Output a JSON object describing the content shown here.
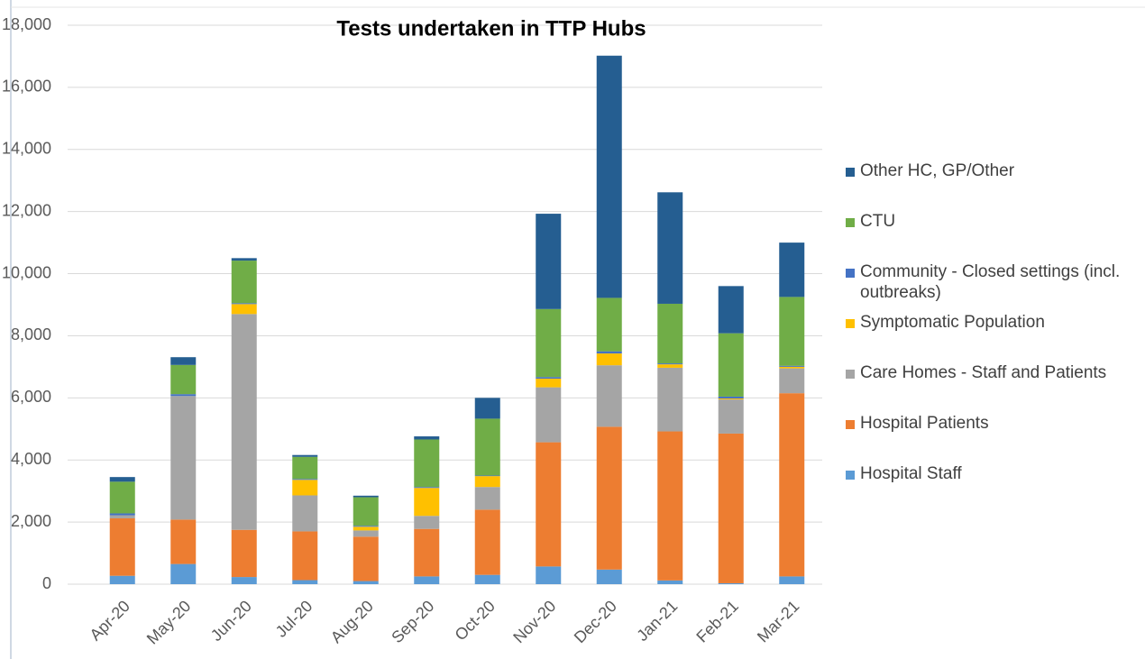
{
  "chart_data": {
    "type": "stacked_bar",
    "title": "Tests undertaken in TTP Hubs",
    "categories": [
      "Apr-20",
      "May-20",
      "Jun-20",
      "Jul-20",
      "Aug-20",
      "Sep-20",
      "Oct-20",
      "Nov-20",
      "Dec-20",
      "Jan-21",
      "Feb-21",
      "Mar-21"
    ],
    "series": [
      {
        "name": "Hospital Staff",
        "color": "#5b9bd5",
        "values": [
          270,
          650,
          230,
          130,
          100,
          250,
          300,
          570,
          470,
          120,
          30,
          250
        ]
      },
      {
        "name": "Hospital Patients",
        "color": "#ed7d31",
        "values": [
          1850,
          1430,
          1520,
          1570,
          1430,
          1530,
          2100,
          4000,
          4600,
          4800,
          4820,
          5900
        ]
      },
      {
        "name": "Care Homes - Staff and Patients",
        "color": "#a5a5a5",
        "values": [
          100,
          3980,
          6950,
          1160,
          200,
          420,
          730,
          1770,
          1980,
          2050,
          1100,
          800
        ]
      },
      {
        "name": "Symptomatic Population",
        "color": "#ffc000",
        "values": [
          0,
          0,
          320,
          500,
          120,
          900,
          350,
          280,
          380,
          110,
          30,
          50
        ]
      },
      {
        "name": "Community - Closed settings (incl. outbreaks)",
        "color": "#4472c4",
        "values": [
          60,
          60,
          30,
          30,
          30,
          30,
          20,
          50,
          70,
          30,
          60,
          30
        ]
      },
      {
        "name": "CTU",
        "color": "#70ad47",
        "values": [
          1020,
          940,
          1370,
          710,
          920,
          1530,
          1830,
          2190,
          1720,
          1920,
          2040,
          2220
        ]
      },
      {
        "name": "Other HC, GP/Other",
        "color": "#255e91",
        "values": [
          150,
          250,
          80,
          60,
          50,
          100,
          670,
          3070,
          7800,
          3590,
          1520,
          1750
        ]
      }
    ],
    "ylim": [
      0,
      18000
    ],
    "yticks": [
      0,
      {
        "value": 2000,
        "label": "2,000"
      },
      {
        "value": 4000,
        "label": "4,000"
      },
      {
        "value": 6000,
        "label": "6,000"
      },
      {
        "value": 8000,
        "label": "8,000"
      },
      {
        "value": 10000,
        "label": "10,000"
      },
      {
        "value": 12000,
        "label": "12,000"
      },
      {
        "value": 14000,
        "label": "14,000"
      },
      {
        "value": 16000,
        "label": "16,000"
      },
      {
        "value": 18000,
        "label": "18,000"
      }
    ],
    "grid": true,
    "legend": "right"
  }
}
